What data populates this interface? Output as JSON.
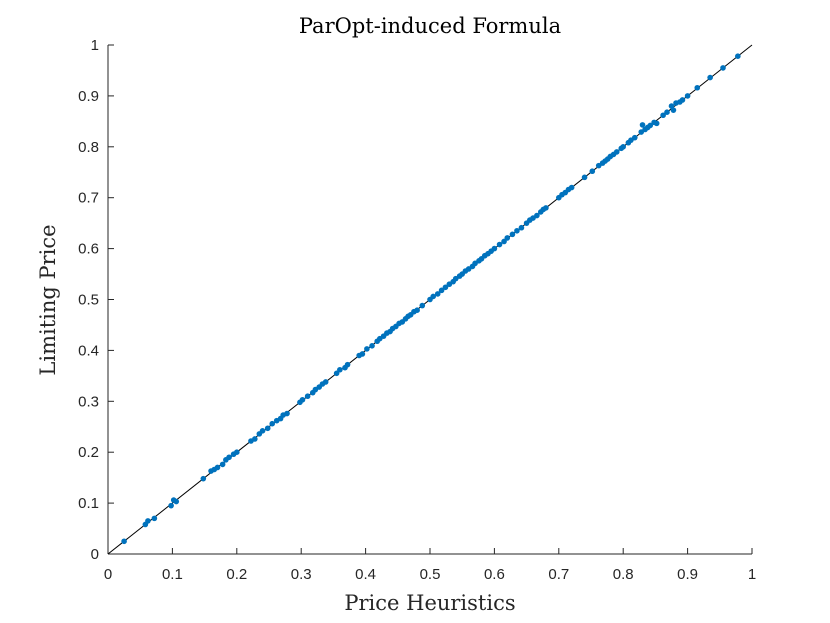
{
  "chart_data": {
    "type": "scatter",
    "title": "ParOpt-induced Formula",
    "xlabel": "Price Heuristics",
    "ylabel": "Limiting Price",
    "xlim": [
      0,
      1
    ],
    "ylim": [
      0,
      1
    ],
    "x_ticks": [
      "0",
      "0.1",
      "0.2",
      "0.3",
      "0.4",
      "0.5",
      "0.6",
      "0.7",
      "0.8",
      "0.9",
      "1"
    ],
    "y_ticks": [
      "0",
      "0.1",
      "0.2",
      "0.3",
      "0.4",
      "0.5",
      "0.6",
      "0.7",
      "0.8",
      "0.9",
      "1"
    ],
    "grid": false,
    "reference_line": {
      "from": [
        0,
        0
      ],
      "to": [
        1,
        1
      ],
      "color": "#000000"
    },
    "marker_color": "#0072BD",
    "points": [
      [
        0.025,
        0.025
      ],
      [
        0.058,
        0.058
      ],
      [
        0.062,
        0.065
      ],
      [
        0.072,
        0.07
      ],
      [
        0.098,
        0.095
      ],
      [
        0.102,
        0.106
      ],
      [
        0.106,
        0.103
      ],
      [
        0.148,
        0.148
      ],
      [
        0.16,
        0.163
      ],
      [
        0.165,
        0.166
      ],
      [
        0.17,
        0.17
      ],
      [
        0.178,
        0.176
      ],
      [
        0.183,
        0.185
      ],
      [
        0.188,
        0.19
      ],
      [
        0.195,
        0.196
      ],
      [
        0.2,
        0.2
      ],
      [
        0.222,
        0.222
      ],
      [
        0.228,
        0.226
      ],
      [
        0.235,
        0.236
      ],
      [
        0.24,
        0.242
      ],
      [
        0.248,
        0.247
      ],
      [
        0.255,
        0.256
      ],
      [
        0.262,
        0.262
      ],
      [
        0.268,
        0.266
      ],
      [
        0.272,
        0.273
      ],
      [
        0.278,
        0.276
      ],
      [
        0.298,
        0.298
      ],
      [
        0.302,
        0.303
      ],
      [
        0.31,
        0.31
      ],
      [
        0.318,
        0.317
      ],
      [
        0.322,
        0.323
      ],
      [
        0.328,
        0.328
      ],
      [
        0.333,
        0.334
      ],
      [
        0.338,
        0.338
      ],
      [
        0.355,
        0.355
      ],
      [
        0.36,
        0.362
      ],
      [
        0.368,
        0.366
      ],
      [
        0.372,
        0.372
      ],
      [
        0.39,
        0.39
      ],
      [
        0.395,
        0.393
      ],
      [
        0.402,
        0.403
      ],
      [
        0.41,
        0.409
      ],
      [
        0.418,
        0.418
      ],
      [
        0.422,
        0.423
      ],
      [
        0.428,
        0.428
      ],
      [
        0.433,
        0.434
      ],
      [
        0.438,
        0.437
      ],
      [
        0.442,
        0.443
      ],
      [
        0.447,
        0.447
      ],
      [
        0.452,
        0.453
      ],
      [
        0.457,
        0.456
      ],
      [
        0.462,
        0.462
      ],
      [
        0.466,
        0.467
      ],
      [
        0.47,
        0.47
      ],
      [
        0.475,
        0.476
      ],
      [
        0.48,
        0.479
      ],
      [
        0.488,
        0.488
      ],
      [
        0.5,
        0.5
      ],
      [
        0.505,
        0.506
      ],
      [
        0.512,
        0.511
      ],
      [
        0.518,
        0.518
      ],
      [
        0.524,
        0.524
      ],
      [
        0.53,
        0.53
      ],
      [
        0.536,
        0.535
      ],
      [
        0.54,
        0.541
      ],
      [
        0.546,
        0.546
      ],
      [
        0.55,
        0.55
      ],
      [
        0.555,
        0.556
      ],
      [
        0.56,
        0.56
      ],
      [
        0.566,
        0.565
      ],
      [
        0.57,
        0.571
      ],
      [
        0.576,
        0.576
      ],
      [
        0.58,
        0.58
      ],
      [
        0.585,
        0.586
      ],
      [
        0.59,
        0.59
      ],
      [
        0.595,
        0.595
      ],
      [
        0.6,
        0.6
      ],
      [
        0.608,
        0.608
      ],
      [
        0.615,
        0.614
      ],
      [
        0.62,
        0.621
      ],
      [
        0.628,
        0.628
      ],
      [
        0.635,
        0.635
      ],
      [
        0.642,
        0.641
      ],
      [
        0.65,
        0.65
      ],
      [
        0.655,
        0.656
      ],
      [
        0.66,
        0.66
      ],
      [
        0.666,
        0.665
      ],
      [
        0.672,
        0.672
      ],
      [
        0.676,
        0.677
      ],
      [
        0.68,
        0.68
      ],
      [
        0.7,
        0.7
      ],
      [
        0.705,
        0.706
      ],
      [
        0.71,
        0.71
      ],
      [
        0.715,
        0.716
      ],
      [
        0.72,
        0.72
      ],
      [
        0.74,
        0.74
      ],
      [
        0.752,
        0.752
      ],
      [
        0.762,
        0.763
      ],
      [
        0.768,
        0.768
      ],
      [
        0.772,
        0.772
      ],
      [
        0.776,
        0.776
      ],
      [
        0.78,
        0.781
      ],
      [
        0.785,
        0.785
      ],
      [
        0.79,
        0.79
      ],
      [
        0.797,
        0.797
      ],
      [
        0.8,
        0.8
      ],
      [
        0.808,
        0.808
      ],
      [
        0.812,
        0.813
      ],
      [
        0.818,
        0.818
      ],
      [
        0.828,
        0.829
      ],
      [
        0.83,
        0.843
      ],
      [
        0.834,
        0.834
      ],
      [
        0.838,
        0.838
      ],
      [
        0.842,
        0.842
      ],
      [
        0.848,
        0.848
      ],
      [
        0.852,
        0.846
      ],
      [
        0.862,
        0.862
      ],
      [
        0.868,
        0.868
      ],
      [
        0.875,
        0.88
      ],
      [
        0.878,
        0.872
      ],
      [
        0.882,
        0.886
      ],
      [
        0.888,
        0.888
      ],
      [
        0.892,
        0.892
      ],
      [
        0.9,
        0.9
      ],
      [
        0.915,
        0.916
      ],
      [
        0.935,
        0.936
      ],
      [
        0.955,
        0.955
      ],
      [
        0.978,
        0.978
      ]
    ]
  }
}
